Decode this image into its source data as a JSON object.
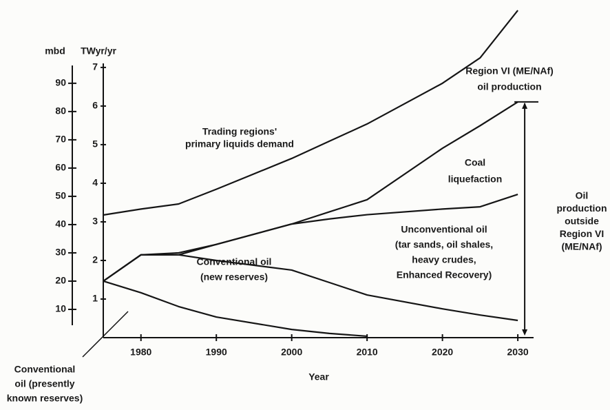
{
  "chart_data": {
    "type": "line",
    "axis_labels": {
      "y": "mbd",
      "y2": "TWyr/yr",
      "x": "Year"
    },
    "x": [
      1975,
      1980,
      1985,
      1990,
      2000,
      2005,
      2010,
      2020,
      2025,
      2030
    ],
    "xlim": [
      1975,
      2032
    ],
    "xticks": [
      1980,
      1990,
      2000,
      2010,
      2020,
      2030
    ],
    "ylim": [
      0,
      118
    ],
    "yticks": [
      10,
      20,
      30,
      40,
      50,
      60,
      70,
      80,
      90
    ],
    "y2lim": [
      0,
      8.64
    ],
    "y2ticks": [
      1,
      2,
      3,
      4,
      5,
      6,
      7
    ],
    "series": [
      {
        "color": "#151515",
        "values": [
          43.4,
          45.5,
          47.3,
          52.5,
          63.4,
          69.5,
          75.6,
          90,
          99,
          115.8
        ]
      },
      {
        "color": "#151515",
        "values": [
          20,
          29.3,
          29.3,
          33,
          40.2,
          44.5,
          48.8,
          67,
          75,
          83.4
        ]
      },
      {
        "color": "#151515",
        "values": [
          20,
          29.3,
          30,
          33,
          40.2,
          42,
          43.5,
          45.5,
          46.3,
          50.7
        ]
      },
      {
        "color": "#151515",
        "values": [
          20,
          29.3,
          29.3,
          27.3,
          23.9,
          19.5,
          15.1,
          10.2,
          8,
          6.1
        ]
      },
      {
        "color": "#151515",
        "values": [
          20,
          15.9,
          11,
          7.3,
          2.9,
          1.5,
          0.5,
          null,
          null,
          null
        ]
      }
    ],
    "annotations": [
      [
        "Trading regions'",
        "primary liquids demand"
      ],
      [
        "Region VI (ME/NAf)",
        "oil production"
      ],
      [
        "Coal",
        "liquefaction"
      ],
      [
        "Oil",
        "production",
        "outside",
        "Region VI",
        "(ME/NAf)"
      ],
      [
        "Unconventional oil",
        "(tar sands, oil shales,",
        "heavy crudes,",
        "Enhanced Recovery)"
      ],
      [
        "Conventional oil",
        "(new reserves)"
      ],
      [
        "Conventional",
        "oil (presently",
        "known reserves)"
      ]
    ]
  }
}
